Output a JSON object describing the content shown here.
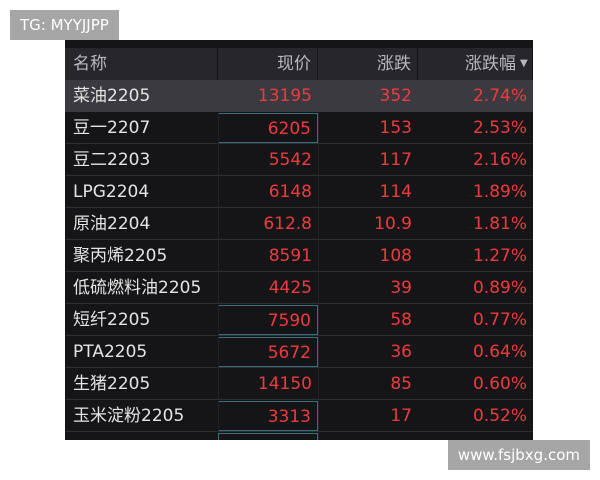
{
  "watermark_top": "TG: MYYJJPP",
  "watermark_bottom": "www.fsjbxg.com",
  "table": {
    "header": [
      "名称",
      "现价",
      "涨跌",
      "涨跌幅"
    ],
    "rows": [
      [
        "菜油2205",
        "13195",
        "352",
        "2.74%"
      ],
      [
        "豆一2207",
        "6205",
        "153",
        "2.53%"
      ],
      [
        "豆二2203",
        "5542",
        "117",
        "2.16%"
      ],
      [
        "LPG2204",
        "6148",
        "114",
        "1.89%"
      ],
      [
        "原油2204",
        "612.8",
        "10.9",
        "1.81%"
      ],
      [
        "聚丙烯2205",
        "8591",
        "108",
        "1.27%"
      ],
      [
        "低硫燃料油2205",
        "4425",
        "39",
        "0.89%"
      ],
      [
        "短纤2205",
        "7590",
        "58",
        "0.77%"
      ],
      [
        "PTA2205",
        "5672",
        "36",
        "0.64%"
      ],
      [
        "生猪2205",
        "14150",
        "85",
        "0.60%"
      ],
      [
        "玉米淀粉2205",
        "3313",
        "17",
        "0.52%"
      ]
    ]
  }
}
